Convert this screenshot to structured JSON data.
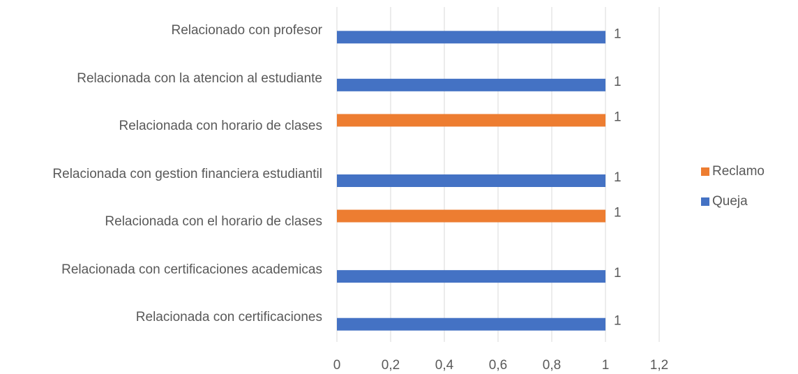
{
  "chart_data": {
    "type": "bar",
    "orientation": "horizontal",
    "categories": [
      "Relacionado con profesor",
      "Relacionada con la atencion al estudiante",
      "Relacionada con horario de clases",
      "Relacionada con gestion financiera estudiantil",
      "Relacionada con el horario de clases",
      "Relacionada con certificaciones academicas",
      "Relacionada con certificaciones"
    ],
    "series": [
      {
        "name": "Reclamo",
        "color": "#ed7d31",
        "values": [
          null,
          null,
          1,
          null,
          1,
          null,
          null
        ]
      },
      {
        "name": "Queja",
        "color": "#4472c4",
        "values": [
          1,
          1,
          null,
          1,
          null,
          1,
          1
        ]
      }
    ],
    "xlim": [
      0,
      1.2
    ],
    "xticks": [
      0,
      {
        "value": 0.2,
        "label": "0,2"
      },
      {
        "value": 0.4,
        "label": "0,4"
      },
      {
        "value": 0.6,
        "label": "0,6"
      },
      {
        "value": 0.8,
        "label": "0,8"
      },
      1,
      {
        "value": 1.2,
        "label": "1,2"
      }
    ],
    "grid": true,
    "legend": "right"
  }
}
